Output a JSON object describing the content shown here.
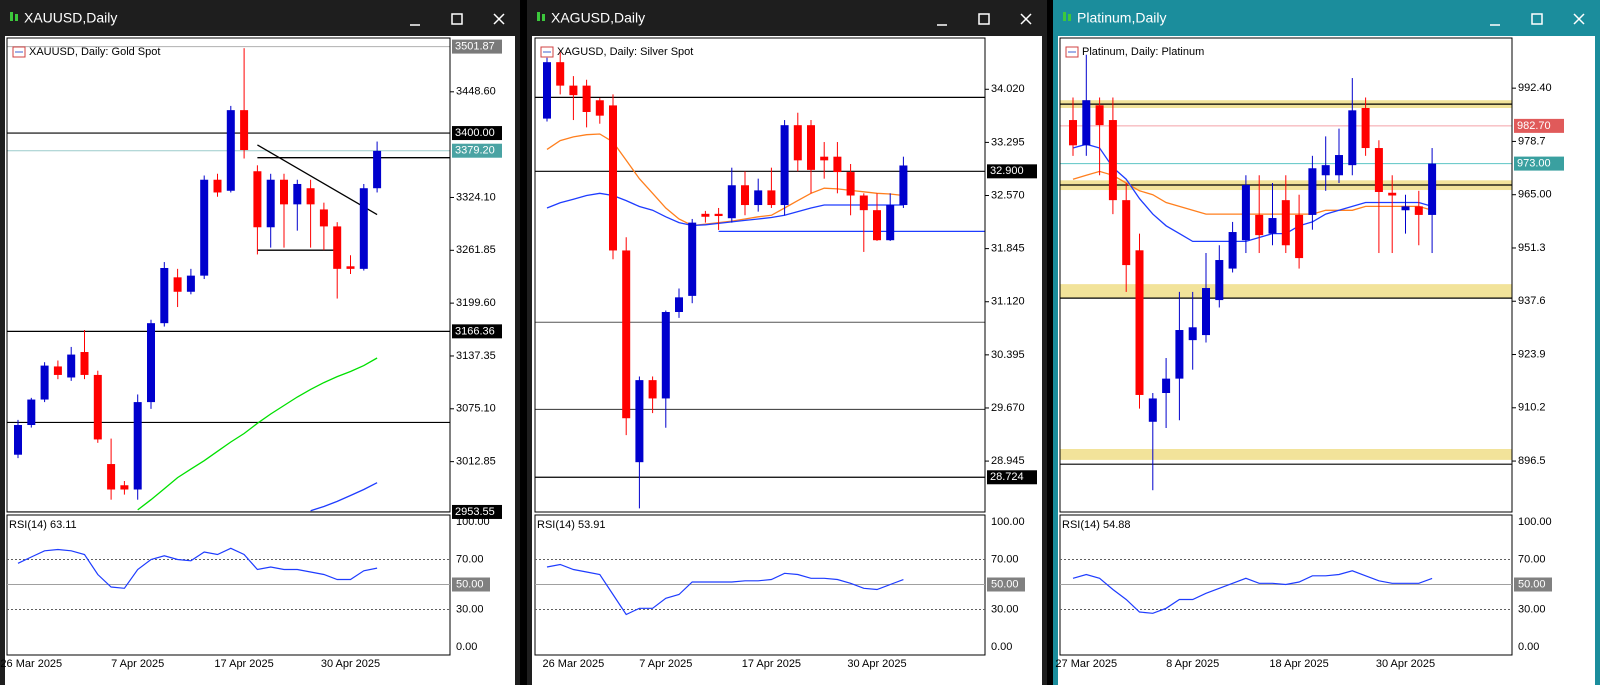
{
  "chart_data": [
    {
      "type": "candlestick",
      "window_title": "XAUUSD,Daily",
      "title": "XAUUSD, Daily:  Gold Spot",
      "rsi_label": "RSI(14) 63.11",
      "up_color": "#0000cd",
      "down_color": "#ff0000",
      "categories": [
        null,
        "26 Mar 2025",
        null,
        null,
        null,
        null,
        null,
        null,
        null,
        "7 Apr 2025",
        null,
        null,
        null,
        null,
        null,
        null,
        null,
        "17 Apr 2025",
        null,
        null,
        null,
        null,
        null,
        null,
        null,
        "30 Apr 2025",
        null,
        null
      ],
      "open": [
        3021,
        3056,
        3086,
        3125,
        3112,
        3142,
        3115,
        3010,
        2985,
        2980,
        3083,
        3176,
        3230,
        3213,
        3232,
        3345,
        3332,
        3427,
        3355,
        3289,
        3345,
        3316,
        3335,
        3310,
        3290,
        3243,
        3240,
        3335
      ],
      "high": [
        3062,
        3088,
        3130,
        3132,
        3148,
        3168,
        3120,
        3040,
        2990,
        3092,
        3180,
        3248,
        3240,
        3240,
        3350,
        3352,
        3432,
        3500,
        3362,
        3352,
        3352,
        3345,
        3345,
        3318,
        3295,
        3256,
        3340,
        3390
      ],
      "low": [
        3017,
        3053,
        3083,
        3110,
        3108,
        3110,
        3035,
        2968,
        2974,
        2968,
        3075,
        3172,
        3195,
        3210,
        3228,
        3325,
        3330,
        3370,
        3257,
        3265,
        3265,
        3285,
        3265,
        3262,
        3205,
        3234,
        3238,
        3330
      ],
      "close": [
        3056,
        3086,
        3126,
        3115,
        3139,
        3115,
        3039,
        2980,
        2980,
        3083,
        3176,
        3241,
        3213,
        3232,
        3345,
        3330,
        3427,
        3380,
        3289,
        3345,
        3316,
        3340,
        3316,
        3290,
        3240,
        3240,
        3335,
        3379
      ],
      "overlays": [
        {
          "color": "#00e000",
          "values": [
            null,
            null,
            null,
            null,
            null,
            null,
            null,
            null,
            null,
            2956,
            2968,
            2981,
            2994,
            3004,
            3014,
            3025,
            3036,
            3046,
            3058,
            3069,
            3079,
            3089,
            3098,
            3106,
            3113,
            3119,
            3126,
            3135
          ]
        },
        {
          "color": "#1e3cff",
          "values": [
            null,
            null,
            null,
            null,
            null,
            null,
            null,
            null,
            null,
            null,
            null,
            null,
            null,
            null,
            null,
            null,
            null,
            null,
            null,
            null,
            null,
            null,
            2955,
            2960,
            2966,
            2973,
            2980,
            2988
          ]
        }
      ],
      "hlines": [
        {
          "value": 3501.87,
          "color": "#b0b0b0"
        },
        {
          "value": 3400,
          "color": "#000000"
        },
        {
          "value": 3379.2,
          "color": "#9ccccc"
        },
        {
          "value": 3166.36,
          "color": "#000000"
        },
        {
          "value": 3059,
          "color": "#000000"
        },
        {
          "value": 2953.55,
          "color": "#000000"
        }
      ],
      "zones": [],
      "trendlines": [
        {
          "x": [
            18,
            27
          ],
          "values": [
            3386,
            3304
          ],
          "color": "#000000",
          "ray": false
        },
        {
          "x": [
            18,
            27
          ],
          "values": [
            3371,
            3371
          ],
          "color": "#000000",
          "ray": true
        },
        {
          "x": [
            18,
            24
          ],
          "values": [
            3262,
            3262
          ],
          "color": "#000000",
          "ray": false
        }
      ],
      "price_labels": [
        {
          "value": 3501.87,
          "label": "3501.87",
          "color": "#7a7a7a"
        },
        {
          "value": 3400,
          "label": "3400.00",
          "color": "#000000"
        },
        {
          "value": 3379.2,
          "label": "3379.20",
          "color": "#4aa3a3"
        },
        {
          "value": 3166.36,
          "label": "3166.36",
          "color": "#000000"
        },
        {
          "value": 2953.55,
          "label": "2953.55",
          "color": "#000000"
        }
      ],
      "ylim": [
        2953.5,
        3512
      ],
      "yticks": [
        {
          "value": 3448.6,
          "label": "3448.60"
        },
        {
          "value": 3324.1,
          "label": "3324.10"
        },
        3261.85,
        {
          "value": 3199.6,
          "label": "3199.60"
        },
        3137.35,
        {
          "value": 3075.1,
          "label": "3075.10"
        },
        3012.85
      ],
      "rsi": [
        67,
        72,
        77,
        78,
        77,
        74,
        58,
        48,
        47,
        62,
        70,
        73,
        70,
        69,
        76,
        74,
        79,
        74,
        62,
        64,
        62,
        62,
        60,
        58,
        54,
        54,
        61,
        63.11
      ],
      "rsi_color": "#1e3cff",
      "rsi_ylim": [
        0,
        100
      ],
      "rsi_ticks": [
        {
          "value": 100,
          "label": "100.00"
        },
        {
          "value": 70,
          "label": "70.00"
        },
        {
          "value": 50,
          "label": "50.00"
        },
        {
          "value": 30,
          "label": "30.00"
        },
        {
          "value": 0,
          "label": "0.00"
        }
      ]
    },
    {
      "type": "candlestick",
      "window_title": "XAGUSD,Daily",
      "title": "XAGUSD, Daily:  Silver Spot",
      "rsi_label": "RSI(14) 53.91",
      "up_color": "#0000cd",
      "down_color": "#ff0000",
      "categories": [
        null,
        null,
        "26 Mar 2025",
        null,
        null,
        null,
        null,
        null,
        null,
        "7 Apr 2025",
        null,
        null,
        null,
        null,
        null,
        null,
        null,
        "17 Apr 2025",
        null,
        null,
        null,
        null,
        null,
        null,
        null,
        "30 Apr 2025",
        null,
        null
      ],
      "open": [
        33.62,
        34.39,
        34.07,
        34.07,
        33.87,
        33.8,
        31.82,
        28.93,
        30.05,
        29.8,
        30.98,
        31.2,
        32.32,
        32.32,
        32.26,
        32.71,
        32.44,
        32.64,
        32.44,
        33.53,
        33.53,
        33.1,
        33.1,
        32.89,
        32.57,
        32.37,
        31.96,
        32.44
      ],
      "high": [
        34.45,
        34.55,
        34.2,
        34.15,
        33.9,
        33.95,
        32.0,
        30.1,
        30.1,
        31.0,
        31.3,
        32.25,
        32.36,
        32.4,
        32.95,
        32.9,
        32.8,
        32.95,
        33.6,
        33.7,
        33.6,
        33.3,
        33.3,
        33.0,
        32.6,
        32.6,
        32.6,
        33.1
      ],
      "low": [
        33.58,
        33.95,
        33.6,
        33.5,
        33.55,
        31.7,
        29.3,
        28.3,
        29.6,
        29.4,
        30.9,
        31.1,
        32.2,
        32.1,
        32.2,
        32.3,
        32.35,
        32.4,
        32.3,
        32.9,
        32.6,
        32.8,
        32.6,
        32.3,
        31.8,
        31.95,
        31.95,
        32.4
      ],
      "close": [
        34.39,
        34.07,
        33.94,
        33.71,
        33.66,
        31.82,
        29.53,
        30.05,
        29.8,
        30.98,
        31.18,
        32.2,
        32.28,
        32.29,
        32.71,
        32.44,
        32.64,
        32.44,
        33.53,
        33.05,
        32.92,
        33.05,
        32.89,
        32.57,
        32.37,
        31.96,
        32.44,
        32.98
      ],
      "overlays": [
        {
          "color": "#ff7f1e",
          "values": [
            33.2,
            33.32,
            33.37,
            33.4,
            33.41,
            33.3,
            33.05,
            32.8,
            32.6,
            32.4,
            32.25,
            32.16,
            32.18,
            32.2,
            32.22,
            32.25,
            32.28,
            32.3,
            32.4,
            32.5,
            32.6,
            32.67,
            32.66,
            32.64,
            32.62,
            32.6,
            32.59,
            32.57
          ]
        },
        {
          "color": "#1e3cff",
          "values": [
            32.4,
            32.47,
            32.52,
            32.57,
            32.6,
            32.57,
            32.5,
            32.42,
            32.37,
            32.28,
            32.2,
            32.16,
            32.17,
            32.19,
            32.21,
            32.23,
            32.25,
            32.27,
            32.3,
            32.35,
            32.4,
            32.44,
            32.44,
            32.44,
            32.44,
            32.44,
            32.44,
            32.44
          ]
        }
      ],
      "hlines": [
        {
          "value": 33.91,
          "color": "#000000"
        },
        {
          "value": 32.9,
          "color": "#000000"
        },
        {
          "value": 30.84,
          "color": "#555555"
        },
        {
          "value": 29.65,
          "color": "#333333"
        },
        {
          "value": 28.724,
          "color": "#000000"
        }
      ],
      "zones": [],
      "trendlines": [
        {
          "x": [
            13,
            27
          ],
          "values": [
            32.08,
            32.08
          ],
          "color": "#1e3cff",
          "ray": true
        }
      ],
      "price_labels": [
        {
          "value": 32.9,
          "label": "32.900",
          "color": "#000000"
        },
        {
          "value": 28.724,
          "label": "28.724",
          "color": "#000000"
        }
      ],
      "ylim": [
        28.25,
        34.72
      ],
      "yticks": [
        {
          "value": 34.02,
          "label": "34.020"
        },
        33.295,
        {
          "value": 32.57,
          "label": "32.570"
        },
        31.845,
        {
          "value": 31.12,
          "label": "31.120"
        },
        30.395,
        {
          "value": 29.67,
          "label": "29.670"
        },
        28.945
      ],
      "rsi": [
        64,
        66,
        62,
        60,
        58,
        42,
        26,
        31,
        31,
        39,
        42,
        52,
        52,
        52,
        52,
        53,
        53,
        54,
        59,
        58,
        55,
        55,
        54,
        51,
        47,
        46,
        50,
        53.91
      ],
      "rsi_color": "#1e3cff",
      "rsi_ylim": [
        0,
        100
      ],
      "rsi_ticks": [
        {
          "value": 100,
          "label": "100.00"
        },
        {
          "value": 70,
          "label": "70.00"
        },
        {
          "value": 50,
          "label": "50.00"
        },
        {
          "value": 30,
          "label": "30.00"
        },
        {
          "value": 0,
          "label": "0.00"
        }
      ]
    },
    {
      "type": "candlestick",
      "window_title": "Platinum,Daily",
      "title": "Platinum, Daily:  Platinum",
      "rsi_label": "RSI(14) 54.88",
      "up_color": "#0000cd",
      "down_color": "#ff0000",
      "categories": [
        null,
        "27 Mar 2025",
        null,
        null,
        null,
        null,
        null,
        null,
        null,
        "8 Apr 2025",
        null,
        null,
        null,
        null,
        null,
        null,
        null,
        "18 Apr 2025",
        null,
        null,
        null,
        null,
        null,
        null,
        null,
        "30 Apr 2025",
        null,
        null
      ],
      "open": [
        984.2,
        977.7,
        988,
        984.2,
        963.6,
        950.7,
        906.6,
        914,
        917.7,
        927.6,
        928.9,
        937.9,
        946,
        953.3,
        959.8,
        955,
        963.6,
        959.8,
        959.8,
        970,
        970,
        972.6,
        987.3,
        977,
        965.5,
        961,
        962,
        959.8
      ],
      "high": [
        990,
        1001,
        990,
        990,
        968,
        955,
        914,
        923,
        940,
        940,
        950,
        952,
        958,
        970,
        970,
        968,
        970,
        965,
        975,
        980,
        982,
        995,
        990,
        979,
        970,
        965,
        966,
        977
      ],
      "low": [
        975,
        975,
        970,
        960,
        940,
        910,
        889,
        905,
        907,
        920,
        927,
        936,
        945,
        950,
        950,
        952,
        950,
        946,
        956,
        966,
        968,
        970,
        975,
        950,
        950,
        955,
        952,
        950
      ],
      "close": [
        977.7,
        989.3,
        982.9,
        963.6,
        946.9,
        913.5,
        912.6,
        917.7,
        930.2,
        930.9,
        941,
        948.2,
        955.4,
        967.5,
        954.6,
        959,
        952,
        948.7,
        971.8,
        972.6,
        975.2,
        986.7,
        977,
        965.7,
        964.8,
        962,
        959.8,
        973
      ],
      "overlays": [
        {
          "color": "#ff7f1e",
          "values": [
            969,
            970,
            971,
            970,
            968,
            966,
            965,
            963,
            962,
            961,
            960,
            960,
            960,
            960,
            960,
            960,
            960,
            960,
            960,
            961,
            961,
            961,
            962,
            962,
            962,
            962,
            962,
            961
          ]
        },
        {
          "color": "#1e3cff",
          "values": [
            977,
            978,
            977,
            972,
            969,
            964,
            960,
            957,
            955,
            953,
            953,
            953,
            953,
            953,
            954,
            955,
            955,
            957,
            958,
            960,
            961,
            962,
            963,
            963,
            963,
            963,
            963,
            962
          ]
        }
      ],
      "hlines": [
        {
          "value": 988.3,
          "color": "#000000"
        },
        {
          "value": 982.7,
          "color": "#f4a0a8"
        },
        {
          "value": 973,
          "color": "#5cc4c4"
        },
        {
          "value": 967.5,
          "color": "#000000"
        },
        {
          "value": 938.4,
          "color": "#000000"
        },
        {
          "value": 895.7,
          "color": "#000000"
        }
      ],
      "zones": [
        {
          "values": [
            987.3,
            989.3
          ],
          "color": "#f2e39a"
        },
        {
          "values": [
            966.2,
            968.7
          ],
          "color": "#f2e39a"
        },
        {
          "values": [
            938.4,
            942
          ],
          "color": "#f2e39a"
        },
        {
          "values": [
            896.8,
            899.6
          ],
          "color": "#f2e39a"
        }
      ],
      "trendlines": [],
      "price_labels": [
        {
          "value": 982.7,
          "label": "982.70",
          "color": "#e05a5a"
        },
        {
          "value": 973,
          "label": "973.00",
          "color": "#3aa0a0"
        }
      ],
      "ylim": [
        883.4,
        1005.3
      ],
      "yticks": [
        {
          "value": 992.4,
          "label": "992.40"
        },
        978.7,
        {
          "value": 965,
          "label": "965.00"
        },
        951.3,
        937.6,
        923.9,
        910.2,
        896.5
      ],
      "rsi": [
        55,
        58,
        55,
        46,
        38,
        28,
        27,
        31,
        38,
        38,
        43,
        47,
        51,
        55,
        51,
        51,
        50,
        52,
        57,
        57,
        58,
        61,
        57,
        53,
        51,
        51,
        51,
        54.88
      ],
      "rsi_color": "#1e3cff",
      "rsi_ylim": [
        0,
        100
      ],
      "rsi_ticks": [
        {
          "value": 100,
          "label": "100.00"
        },
        {
          "value": 70,
          "label": "70.00"
        },
        {
          "value": 50,
          "label": "50.00"
        },
        {
          "value": 30,
          "label": "30.00"
        },
        {
          "value": 0,
          "label": "0.00"
        }
      ]
    }
  ]
}
